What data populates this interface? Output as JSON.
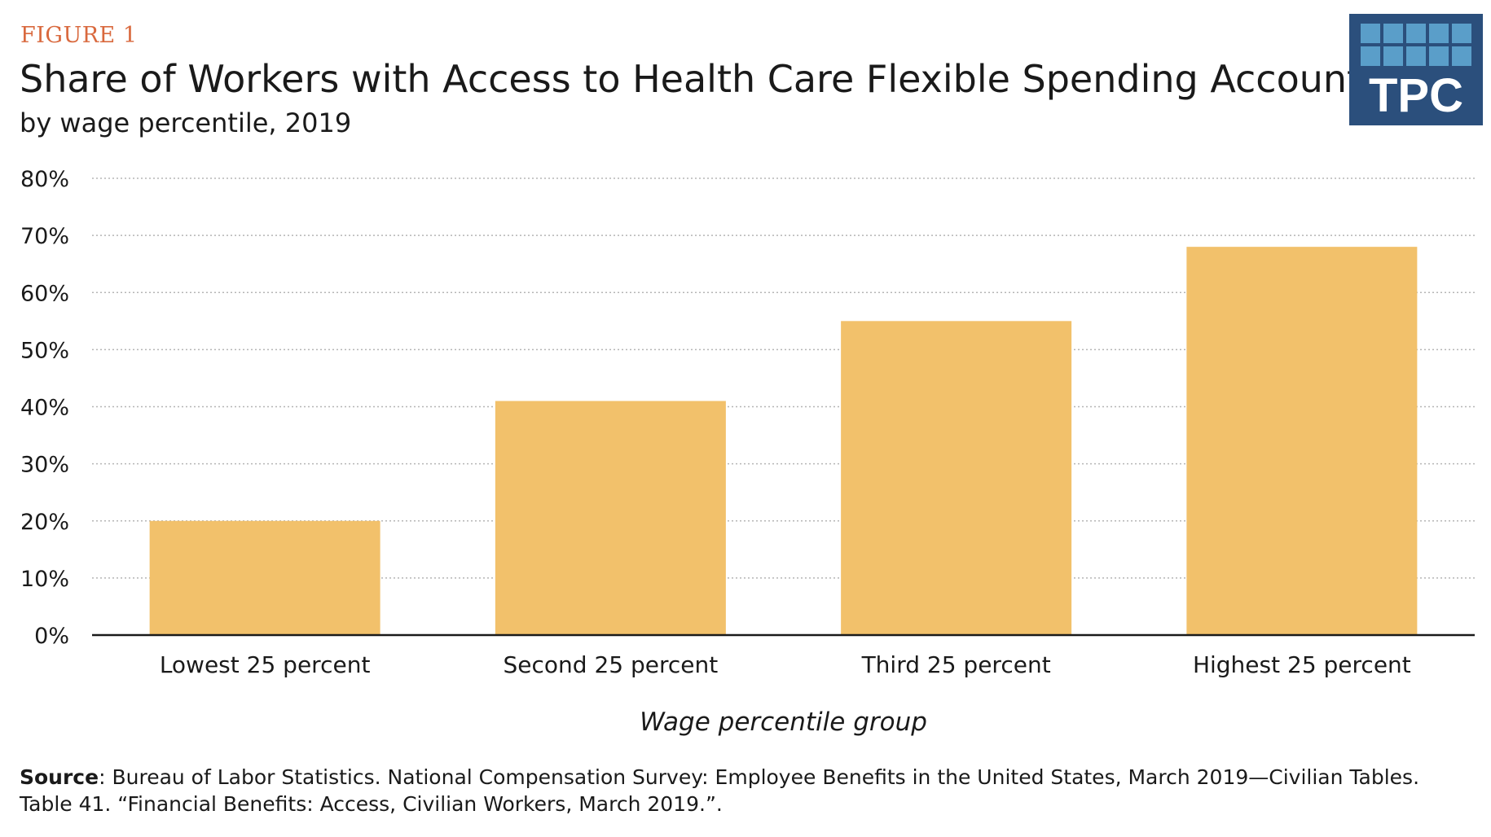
{
  "figure_label": "FIGURE 1",
  "logo": {
    "text": "TPC",
    "background": "#2b4f7c",
    "tile_color": "#5a9ec9"
  },
  "source": {
    "label": "Source",
    "text": ": Bureau of Labor Statistics. National Compensation Survey: Employee Benefits in the United States, March 2019—Civilian Tables. Table 41. “Financial Benefits: Access, Civilian Workers, March 2019.”."
  },
  "chart_data": {
    "type": "bar",
    "title": "Share of Workers with Access to Health Care Flexible Spending Accounts",
    "subtitle": "by wage percentile, 2019",
    "xlabel": "Wage percentile group",
    "ylabel": "",
    "categories": [
      "Lowest 25 percent",
      "Second 25 percent",
      "Third 25 percent",
      "Highest 25 percent"
    ],
    "values": [
      20,
      41,
      55,
      68
    ],
    "ylim": [
      0,
      80
    ],
    "yticks": [
      "0%",
      "10%",
      "20%",
      "30%",
      "40%",
      "50%",
      "60%",
      "70%",
      "80%"
    ],
    "bar_color": "#f2c16b",
    "grid": true
  }
}
